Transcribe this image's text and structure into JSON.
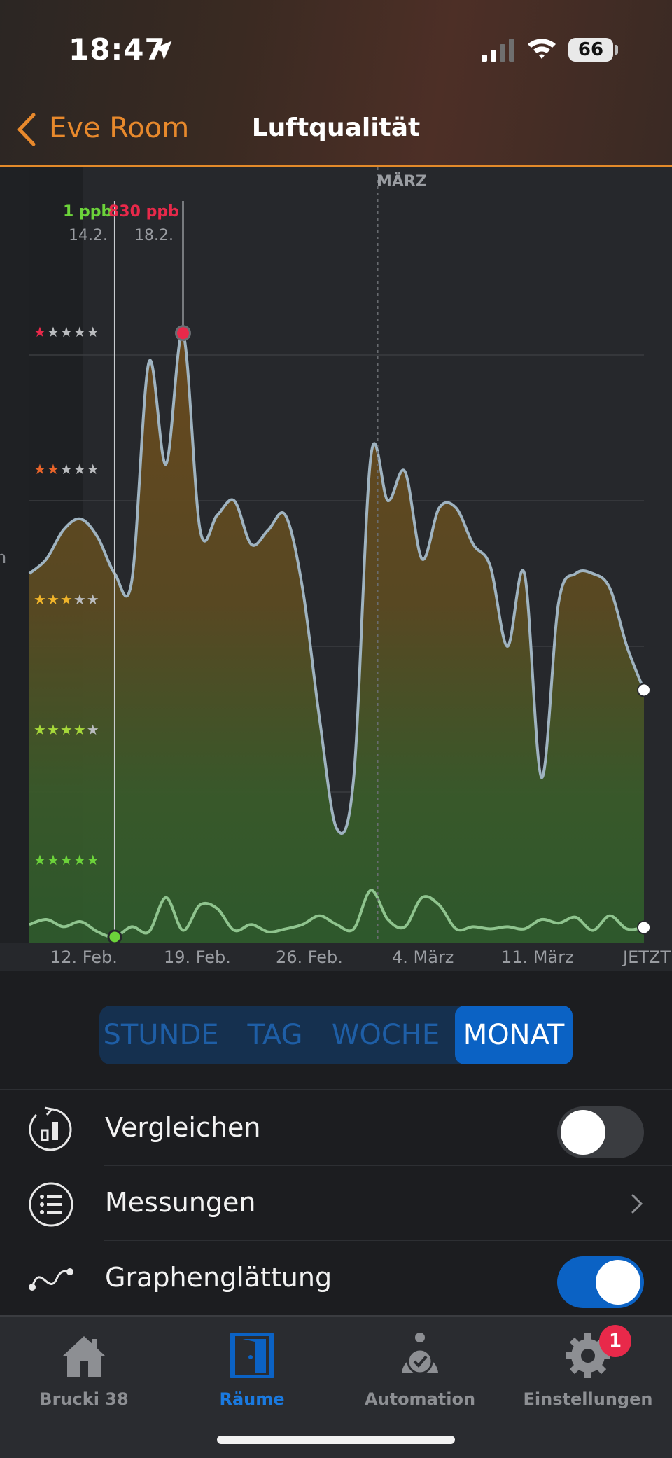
{
  "status_bar": {
    "time": "18:47",
    "battery": "66"
  },
  "nav": {
    "back_label": "Eve Room",
    "title": "Luftqualität"
  },
  "colors": {
    "accent": "#e38a2a",
    "active_blue": "#0b62c4",
    "max_red": "#e8294a",
    "min_green": "#6cd33a"
  },
  "chart_data": {
    "type": "area",
    "x_labels": [
      "12. Feb.",
      "19. Feb.",
      "26. Feb.",
      "4. März",
      "11. März",
      "JETZT"
    ],
    "month_marker": "MÄRZ",
    "y_scale_labels": [
      "★★★★★",
      "★★★★★",
      "★★★★★",
      "★★★★★",
      "★★★★★"
    ],
    "y_scale_colored_stars": [
      1,
      2,
      3,
      4,
      5
    ],
    "y_scale_star_colors": [
      "#e8294a",
      "#e8642a",
      "#f0b42a",
      "#a6d83a",
      "#6cd33a"
    ],
    "ylim": [
      0,
      1000
    ],
    "cursor_min": {
      "value": "1 ppb",
      "date": "14.2.",
      "y": 1
    },
    "cursor_max": {
      "value": "830 ppb",
      "date": "18.2.",
      "y": 830
    },
    "series": [
      {
        "name": "",
        "x": [
          0,
          1,
          2,
          3,
          4,
          5,
          6,
          7,
          8,
          9,
          10,
          11,
          12,
          13,
          14,
          15,
          16,
          17,
          18,
          19,
          20,
          21,
          22,
          23,
          24,
          25,
          26,
          27,
          28,
          29,
          30,
          31,
          32,
          33,
          34,
          35,
          36
        ],
        "y": [
          500,
          520,
          560,
          575,
          550,
          500,
          490,
          790,
          650,
          830,
          560,
          580,
          600,
          540,
          560,
          580,
          480,
          300,
          150,
          220,
          660,
          600,
          640,
          520,
          590,
          590,
          540,
          510,
          400,
          500,
          220,
          460,
          500,
          500,
          480,
          400,
          340
        ]
      },
      {
        "name": "",
        "x": [
          0,
          1,
          2,
          3,
          4,
          5,
          6,
          7,
          8,
          9,
          10,
          11,
          12,
          13,
          14,
          15,
          16,
          17,
          18,
          19,
          20,
          21,
          22,
          23,
          24,
          25,
          26,
          27,
          28,
          29,
          30,
          31,
          32,
          33,
          34,
          35,
          36
        ],
        "y": [
          18,
          25,
          15,
          22,
          8,
          1,
          15,
          8,
          55,
          10,
          45,
          40,
          10,
          18,
          8,
          12,
          18,
          30,
          18,
          12,
          65,
          25,
          15,
          55,
          45,
          12,
          15,
          12,
          15,
          12,
          25,
          20,
          28,
          10,
          30,
          12,
          14
        ]
      }
    ]
  },
  "range_tabs": [
    {
      "label": "STUNDE",
      "active": false
    },
    {
      "label": "TAG",
      "active": false
    },
    {
      "label": "WOCHE",
      "active": false
    },
    {
      "label": "MONAT",
      "active": true
    }
  ],
  "settings": {
    "compare": {
      "label": "Vergleichen",
      "on": false
    },
    "measurements": {
      "label": "Messungen"
    },
    "smoothing": {
      "label": "Graphenglättung",
      "on": true
    }
  },
  "tabbar": [
    {
      "label": "Brucki 38",
      "icon": "house-icon",
      "active": false
    },
    {
      "label": "Räume",
      "icon": "door-icon",
      "active": true
    },
    {
      "label": "Automation",
      "icon": "alarm-clock-icon",
      "active": false
    },
    {
      "label": "Einstellungen",
      "icon": "gear-icon",
      "active": false,
      "badge": "1"
    }
  ],
  "partial_left_text": "n"
}
